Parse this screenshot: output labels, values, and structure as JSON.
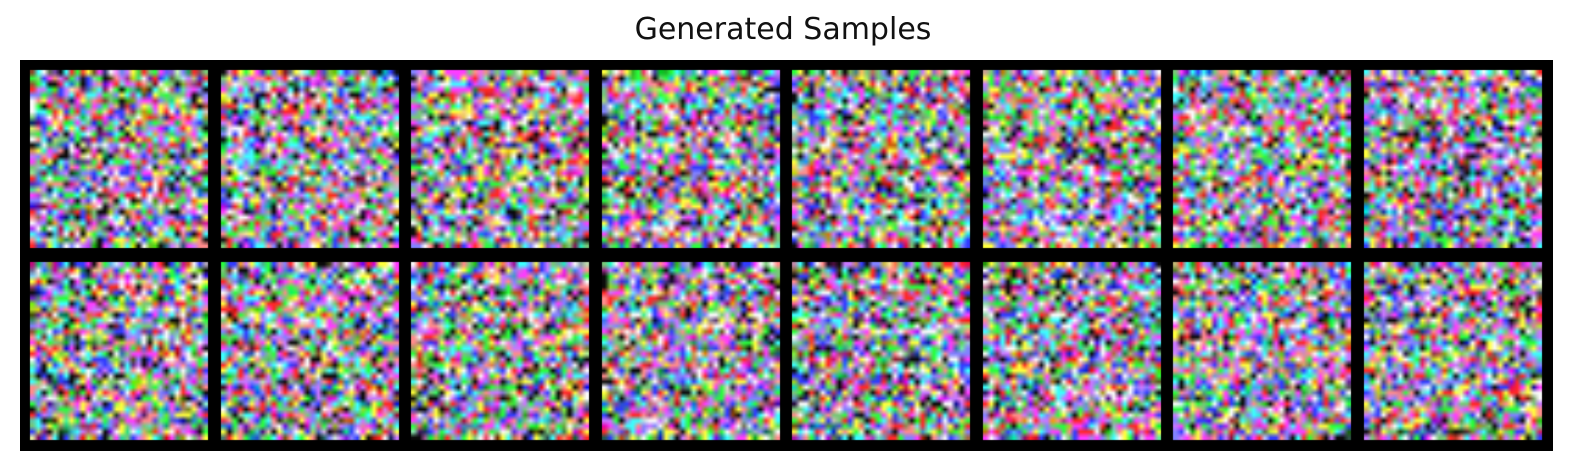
{
  "figure": {
    "title": "Generated Samples"
  },
  "grid": {
    "rows": 2,
    "cols": 8,
    "tile_resolution": 32,
    "border_color": "#000000",
    "content": "random multicolor noise samples"
  }
}
